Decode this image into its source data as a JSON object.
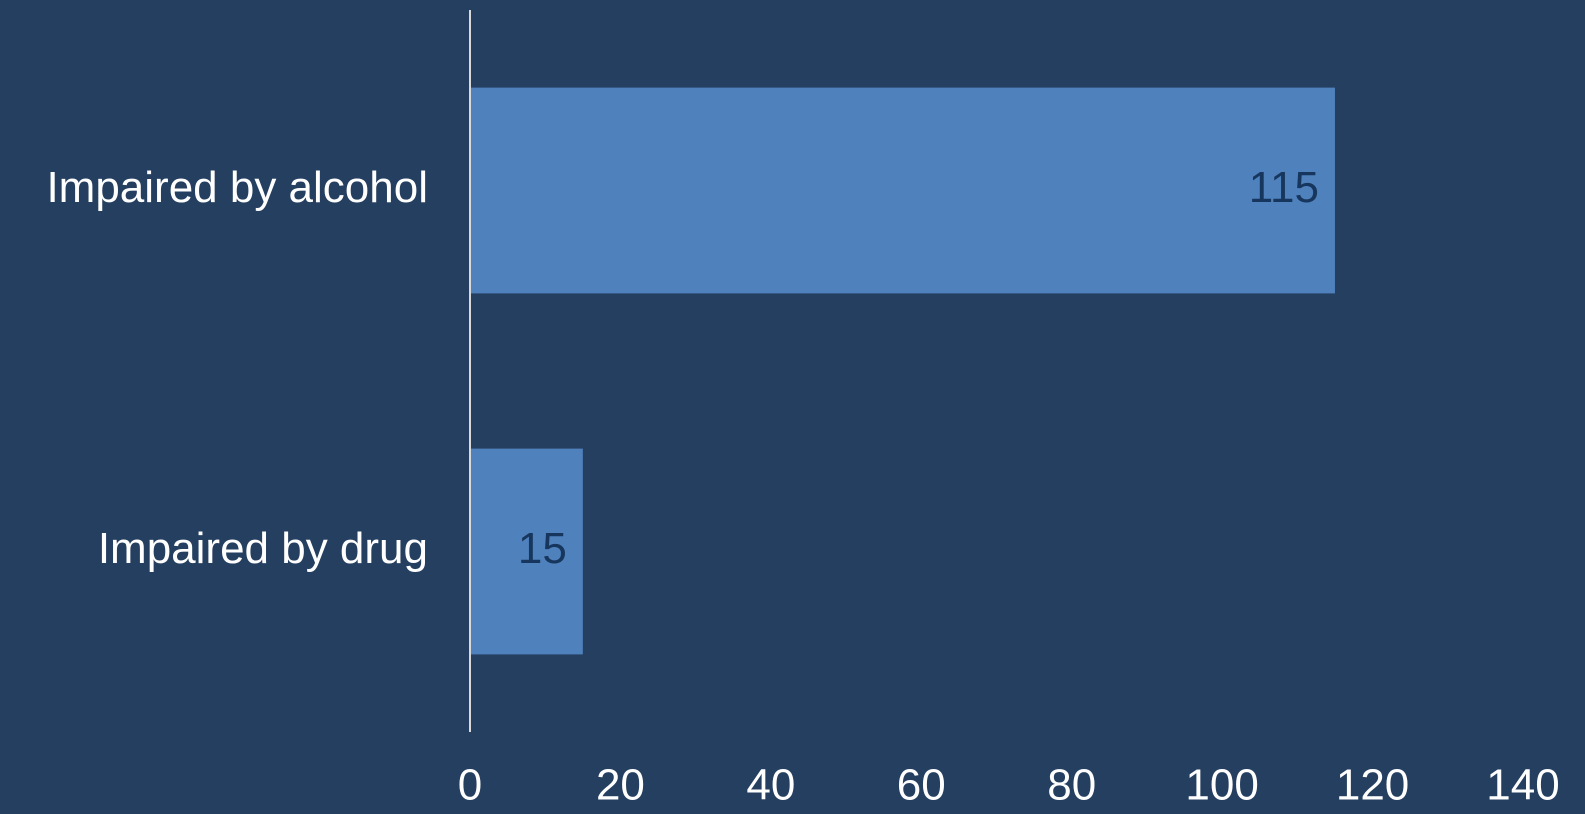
{
  "colors": {
    "background": "#253f60",
    "bar": "#4f81bd",
    "axis_line": "#d9d9d9",
    "category_text": "#ffffff",
    "tick_text": "#ffffff",
    "data_label_text": "#17365d"
  },
  "chart_data": {
    "type": "bar",
    "orientation": "horizontal",
    "categories": [
      "Impaired by alcohol",
      "Impaired by drug"
    ],
    "values": [
      115,
      15
    ],
    "data_labels": [
      "115",
      "15"
    ],
    "x_ticks": [
      "0",
      "20",
      "40",
      "60",
      "80",
      "100",
      "120",
      "140"
    ],
    "xlim": [
      0,
      140
    ],
    "grid": false,
    "legend": "none"
  }
}
